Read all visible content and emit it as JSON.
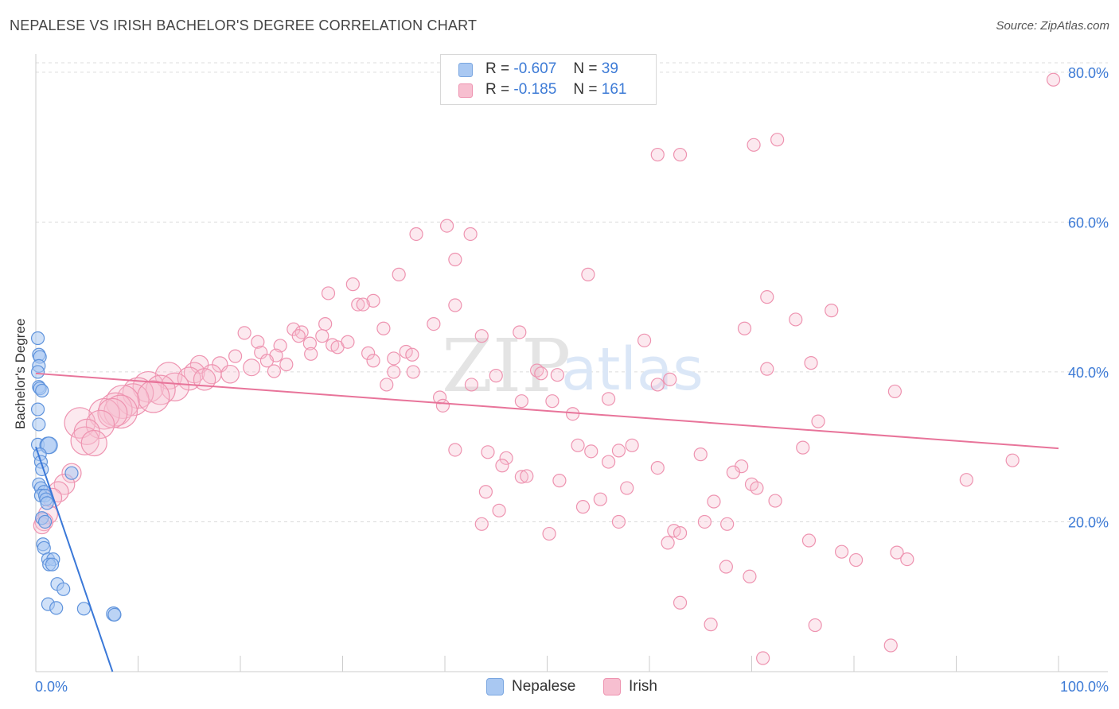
{
  "title": "NEPALESE VS IRISH BACHELOR'S DEGREE CORRELATION CHART",
  "source": "Source: ZipAtlas.com",
  "watermark": {
    "zip": "ZIP",
    "atlas": "atlas"
  },
  "legend": {
    "rows": [
      {
        "r_label": "R =",
        "r_value": "-0.607",
        "n_label": "N =",
        "n_value": "39",
        "color": "#a9c8f2",
        "border": "#7aa6e0"
      },
      {
        "r_label": "R =",
        "r_value": "-0.185",
        "n_label": "N =",
        "n_value": "161",
        "color": "#f7bfd0",
        "border": "#ee93b0"
      }
    ]
  },
  "bottom_legend": [
    {
      "label": "Nepalese",
      "color": "#a9c8f2",
      "border": "#7aa6e0"
    },
    {
      "label": "Irish",
      "color": "#f7bfd0",
      "border": "#ee93b0"
    }
  ],
  "chart_data": {
    "type": "scatter",
    "title": "NEPALESE VS IRISH BACHELOR'S DEGREE CORRELATION CHART",
    "xlabel": "",
    "ylabel": "Bachelor's Degree",
    "x_tick_labels": [
      "0.0%",
      "100.0%"
    ],
    "y_tick_labels": [
      "20.0%",
      "40.0%",
      "60.0%",
      "80.0%"
    ],
    "y_ticks": [
      20,
      40,
      60,
      80
    ],
    "xlim": [
      0,
      100
    ],
    "ylim": [
      0,
      82
    ],
    "grid": true,
    "colors": {
      "nepalese": "#3a78d8",
      "irish": "#e8749a",
      "axis_text": "#3d7bd6"
    },
    "series": [
      {
        "name": "Nepalese",
        "trend": {
          "x0": 0.0,
          "y0": 30.0,
          "x1": 7.5,
          "y1": 0.0
        },
        "points": [
          [
            0.2,
            44.5,
            1
          ],
          [
            0.3,
            42.3,
            1
          ],
          [
            0.4,
            42.0,
            1
          ],
          [
            0.3,
            40.8,
            1
          ],
          [
            0.2,
            40.0,
            1
          ],
          [
            0.3,
            38.0,
            1
          ],
          [
            0.4,
            37.8,
            1
          ],
          [
            0.6,
            37.5,
            1
          ],
          [
            0.2,
            35.0,
            1
          ],
          [
            0.3,
            33.0,
            1
          ],
          [
            0.2,
            30.3,
            1
          ],
          [
            1.2,
            30.2,
            1.3
          ],
          [
            1.3,
            30.2,
            1.3
          ],
          [
            0.4,
            29.0,
            1
          ],
          [
            0.5,
            28.0,
            1
          ],
          [
            0.6,
            27.0,
            1
          ],
          [
            3.5,
            26.5,
            1
          ],
          [
            0.3,
            25.0,
            1
          ],
          [
            0.5,
            24.5,
            1
          ],
          [
            0.8,
            24.0,
            1
          ],
          [
            0.5,
            23.5,
            1
          ],
          [
            0.9,
            23.5,
            1
          ],
          [
            1.0,
            23.0,
            1
          ],
          [
            1.1,
            22.5,
            1
          ],
          [
            0.6,
            20.5,
            1
          ],
          [
            0.9,
            20.0,
            1
          ],
          [
            0.7,
            17.0,
            1
          ],
          [
            0.8,
            16.5,
            1
          ],
          [
            1.2,
            15.0,
            1
          ],
          [
            1.7,
            15.0,
            1
          ],
          [
            1.3,
            14.3,
            1
          ],
          [
            1.6,
            14.3,
            1
          ],
          [
            2.1,
            11.7,
            1
          ],
          [
            2.7,
            11.0,
            1
          ],
          [
            1.2,
            9.0,
            1
          ],
          [
            2.0,
            8.5,
            1
          ],
          [
            4.7,
            8.4,
            1
          ],
          [
            7.6,
            7.7,
            1.1
          ],
          [
            7.7,
            7.6,
            1
          ]
        ]
      },
      {
        "name": "Irish",
        "trend": {
          "x0": 0.0,
          "y0": 39.8,
          "x1": 100.0,
          "y1": 29.8
        },
        "points": [
          [
            99.5,
            79.0,
            1
          ],
          [
            72.5,
            71.0,
            1
          ],
          [
            70.2,
            70.3,
            1
          ],
          [
            60.8,
            69.0,
            1
          ],
          [
            63.0,
            69.0,
            1
          ],
          [
            40.2,
            59.5,
            1
          ],
          [
            37.2,
            58.4,
            1
          ],
          [
            42.5,
            58.4,
            1
          ],
          [
            41.0,
            55.0,
            1
          ],
          [
            35.5,
            53.0,
            1
          ],
          [
            54.0,
            53.0,
            1
          ],
          [
            31.0,
            51.7,
            1
          ],
          [
            28.6,
            50.5,
            1
          ],
          [
            71.5,
            50.0,
            1
          ],
          [
            33.0,
            49.5,
            1
          ],
          [
            31.5,
            49.0,
            1
          ],
          [
            32.0,
            49.0,
            1
          ],
          [
            41.0,
            48.9,
            1
          ],
          [
            77.8,
            48.2,
            1
          ],
          [
            74.3,
            47.0,
            1
          ],
          [
            28.3,
            46.4,
            1
          ],
          [
            38.9,
            46.4,
            1
          ],
          [
            69.3,
            45.8,
            1
          ],
          [
            25.2,
            45.7,
            1
          ],
          [
            34.0,
            45.8,
            1
          ],
          [
            20.4,
            45.2,
            1
          ],
          [
            26.0,
            45.3,
            1
          ],
          [
            43.6,
            44.8,
            1
          ],
          [
            47.3,
            45.3,
            1
          ],
          [
            25.7,
            44.8,
            1
          ],
          [
            28.0,
            44.8,
            1
          ],
          [
            59.5,
            44.2,
            1
          ],
          [
            21.7,
            44.0,
            1
          ],
          [
            26.8,
            43.8,
            1
          ],
          [
            23.9,
            43.5,
            1
          ],
          [
            29.0,
            43.6,
            1
          ],
          [
            29.5,
            43.3,
            1
          ],
          [
            30.5,
            44.0,
            1
          ],
          [
            22.0,
            42.6,
            1
          ],
          [
            23.5,
            42.2,
            1
          ],
          [
            26.9,
            42.4,
            1
          ],
          [
            32.5,
            42.5,
            1
          ],
          [
            36.2,
            42.7,
            1
          ],
          [
            36.8,
            42.3,
            1
          ],
          [
            19.5,
            42.1,
            1
          ],
          [
            22.6,
            41.5,
            1
          ],
          [
            24.5,
            41.0,
            1
          ],
          [
            35.0,
            41.8,
            1
          ],
          [
            33.0,
            41.5,
            1
          ],
          [
            75.8,
            41.2,
            1
          ],
          [
            16.0,
            41.0,
            1.4
          ],
          [
            18.0,
            41.0,
            1.2
          ],
          [
            21.1,
            40.6,
            1.3
          ],
          [
            23.3,
            40.1,
            1
          ],
          [
            71.5,
            40.4,
            1
          ],
          [
            35.0,
            40.0,
            1
          ],
          [
            36.9,
            40.0,
            1
          ],
          [
            49.0,
            40.2,
            1
          ],
          [
            49.4,
            39.8,
            1
          ],
          [
            51.0,
            39.6,
            1
          ],
          [
            15.5,
            39.9,
            1.6
          ],
          [
            17.2,
            39.7,
            1.5
          ],
          [
            19.0,
            39.7,
            1.4
          ],
          [
            45.0,
            39.5,
            1
          ],
          [
            13.0,
            39.5,
            2.1
          ],
          [
            15.0,
            39.1,
            1.8
          ],
          [
            16.5,
            39.0,
            1.7
          ],
          [
            62.0,
            39.0,
            1
          ],
          [
            34.3,
            38.3,
            1
          ],
          [
            42.6,
            38.3,
            1
          ],
          [
            11.0,
            38.0,
            2.4
          ],
          [
            13.6,
            38.0,
            2.2
          ],
          [
            12.2,
            37.6,
            2.3
          ],
          [
            10.0,
            37.2,
            2.4
          ],
          [
            60.8,
            38.3,
            1
          ],
          [
            84.0,
            37.4,
            1
          ],
          [
            9.5,
            36.3,
            2.5
          ],
          [
            11.5,
            36.7,
            2.5
          ],
          [
            8.5,
            36.0,
            2.6
          ],
          [
            39.5,
            36.6,
            1
          ],
          [
            47.5,
            36.1,
            1
          ],
          [
            50.5,
            36.1,
            1
          ],
          [
            56.0,
            36.4,
            1
          ],
          [
            7.8,
            35.0,
            2.6
          ],
          [
            8.3,
            34.7,
            2.6
          ],
          [
            39.8,
            35.5,
            1
          ],
          [
            6.7,
            34.4,
            2.4
          ],
          [
            7.5,
            34.5,
            2.3
          ],
          [
            52.5,
            34.4,
            1
          ],
          [
            76.5,
            33.4,
            1
          ],
          [
            4.3,
            33.2,
            2.4
          ],
          [
            6.3,
            33.0,
            2.2
          ],
          [
            5.0,
            32.0,
            2.0
          ],
          [
            4.8,
            30.8,
            2.2
          ],
          [
            5.7,
            30.5,
            2.0
          ],
          [
            53.0,
            30.2,
            1
          ],
          [
            58.3,
            30.2,
            1
          ],
          [
            75.0,
            29.9,
            1
          ],
          [
            41.0,
            29.6,
            1
          ],
          [
            44.2,
            29.3,
            1
          ],
          [
            54.3,
            29.4,
            1
          ],
          [
            57.0,
            29.5,
            1
          ],
          [
            65.0,
            29.0,
            1
          ],
          [
            46.0,
            28.5,
            1
          ],
          [
            56.0,
            28.0,
            1
          ],
          [
            95.5,
            28.2,
            1
          ],
          [
            45.6,
            27.5,
            1
          ],
          [
            60.8,
            27.2,
            1
          ],
          [
            69.0,
            27.4,
            1
          ],
          [
            3.5,
            26.5,
            1.5
          ],
          [
            68.2,
            26.6,
            1
          ],
          [
            47.5,
            26.0,
            1
          ],
          [
            48.0,
            26.1,
            1
          ],
          [
            51.2,
            25.5,
            1
          ],
          [
            91.0,
            25.6,
            1
          ],
          [
            70.0,
            25.0,
            1
          ],
          [
            2.8,
            25.0,
            1.6
          ],
          [
            57.8,
            24.5,
            1
          ],
          [
            70.5,
            24.5,
            1
          ],
          [
            2.2,
            24.0,
            1.6
          ],
          [
            44.0,
            24.0,
            1
          ],
          [
            1.6,
            23.2,
            1.5
          ],
          [
            55.2,
            23.0,
            1
          ],
          [
            66.3,
            22.7,
            1
          ],
          [
            72.3,
            22.8,
            1
          ],
          [
            53.5,
            22.0,
            1
          ],
          [
            45.3,
            21.5,
            1
          ],
          [
            1.2,
            21.0,
            1.5
          ],
          [
            0.8,
            20.0,
            1.4
          ],
          [
            57.0,
            20.0,
            1
          ],
          [
            65.4,
            20.0,
            1
          ],
          [
            0.6,
            19.5,
            1.3
          ],
          [
            43.6,
            19.7,
            1
          ],
          [
            67.6,
            19.7,
            1
          ],
          [
            62.4,
            18.8,
            1
          ],
          [
            63.0,
            18.5,
            1
          ],
          [
            50.2,
            18.4,
            1
          ],
          [
            75.6,
            17.5,
            1
          ],
          [
            61.8,
            17.2,
            1
          ],
          [
            78.8,
            16.0,
            1
          ],
          [
            84.2,
            15.9,
            1
          ],
          [
            80.2,
            14.9,
            1
          ],
          [
            85.2,
            15.0,
            1
          ],
          [
            67.5,
            14.0,
            1
          ],
          [
            69.8,
            12.7,
            1
          ],
          [
            63.0,
            9.2,
            1
          ],
          [
            66.0,
            6.3,
            1
          ],
          [
            76.2,
            6.2,
            1
          ],
          [
            83.6,
            3.5,
            1
          ],
          [
            71.1,
            1.8,
            1
          ]
        ]
      }
    ]
  }
}
